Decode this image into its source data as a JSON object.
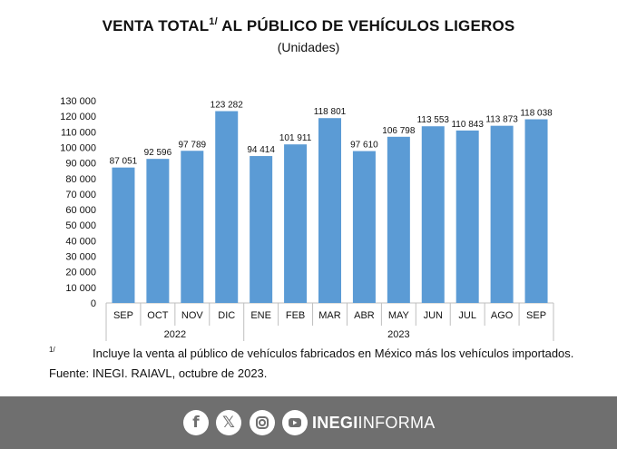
{
  "header": {
    "title_main": "VENTA TOTAL",
    "title_sup": "1/",
    "title_rest": " AL PÚBLICO DE VEHÍCULOS LIGEROS",
    "subtitle": "(Unidades)"
  },
  "chart_data": {
    "type": "bar",
    "title": "VENTA TOTAL 1/ AL PÚBLICO DE VEHÍCULOS LIGEROS",
    "subtitle": "(Unidades)",
    "categories": [
      "SEP",
      "OCT",
      "NOV",
      "DIC",
      "ENE",
      "FEB",
      "MAR",
      "ABR",
      "MAY",
      "JUN",
      "JUL",
      "AGO",
      "SEP"
    ],
    "values": [
      87051,
      92596,
      97789,
      123282,
      94414,
      101911,
      118801,
      97610,
      106798,
      113553,
      110843,
      113873,
      118038
    ],
    "value_labels": [
      "87 051",
      "92 596",
      "97 789",
      "123 282",
      "94 414",
      "101 911",
      "118 801",
      "97 610",
      "106 798",
      "113 553",
      "110 843",
      "113 873",
      "118 038"
    ],
    "groups": [
      {
        "label": "2022",
        "start": 0,
        "end": 3
      },
      {
        "label": "2023",
        "start": 4,
        "end": 12
      }
    ],
    "y_ticks": [
      0,
      10000,
      20000,
      30000,
      40000,
      50000,
      60000,
      70000,
      80000,
      90000,
      100000,
      110000,
      120000,
      130000
    ],
    "y_tick_labels": [
      "0",
      "10 000",
      "20 000",
      "30 000",
      "40 000",
      "50 000",
      "60 000",
      "70 000",
      "80 000",
      "90 000",
      "100 000",
      "110 000",
      "120 000",
      "130 000"
    ],
    "ylim": [
      0,
      130000
    ],
    "xlabel": "",
    "ylabel": "",
    "bar_color": "#5b9bd5",
    "grid": false
  },
  "footnote": {
    "mark": "1/",
    "text": "Incluye la venta al público de vehículos fabricados en México más los vehículos importados."
  },
  "source": "Fuente: INEGI. RAIAVL, octubre de 2023.",
  "footer": {
    "brand_bold": "INEGI",
    "brand_rest": "INFORMA",
    "icons": [
      "facebook-icon",
      "x-icon",
      "instagram-icon",
      "youtube-icon"
    ],
    "background": "#6f6f6f"
  }
}
